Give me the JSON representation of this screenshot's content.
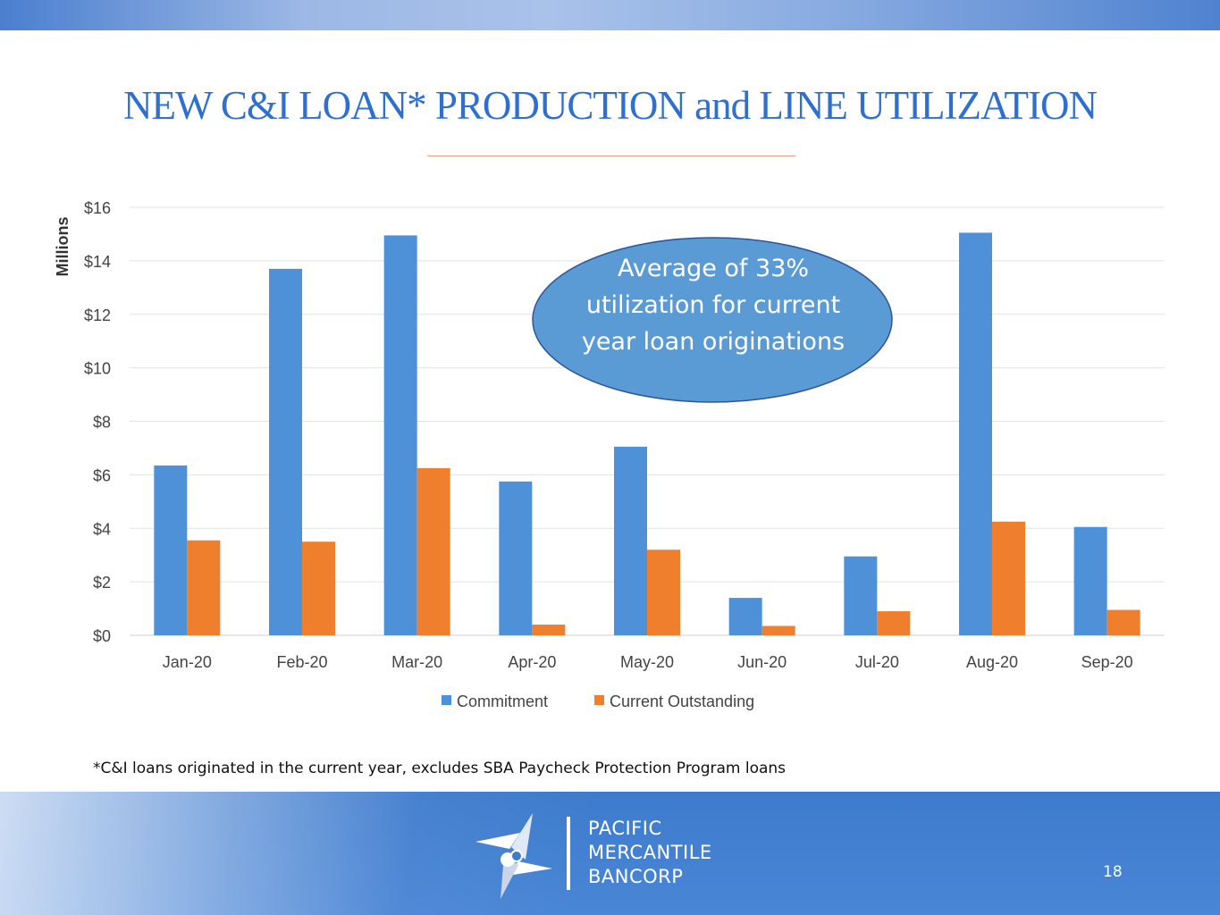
{
  "slide": {
    "title": "NEW C&I LOAN* PRODUCTION and LINE UTILIZATION",
    "footnote": "*C&I loans originated in the current year, excludes SBA Paycheck Protection Program loans",
    "page_number": "18",
    "logo": {
      "lines": [
        "PACIFIC",
        "MERCANTILE",
        "BANCORP"
      ]
    },
    "colors": {
      "title": "#2e6fd0",
      "commitment": "#4f91d9",
      "outstanding": "#f07f2d",
      "callout": "#5b9bd5",
      "band": "#4a86d6"
    }
  },
  "chart_data": {
    "type": "bar",
    "ylabel": "Millions",
    "xlabel": "",
    "ylim": [
      0,
      16
    ],
    "y_ticks": [
      0,
      2,
      4,
      6,
      8,
      10,
      12,
      14,
      16
    ],
    "y_tick_labels": [
      "$0",
      "$2",
      "$4",
      "$6",
      "$8",
      "$10",
      "$12",
      "$14",
      "$16"
    ],
    "grid": true,
    "legend_position": "bottom",
    "categories": [
      "Jan-20",
      "Feb-20",
      "Mar-20",
      "Apr-20",
      "May-20",
      "Jun-20",
      "Jul-20",
      "Aug-20",
      "Sep-20"
    ],
    "series": [
      {
        "name": "Commitment",
        "values": [
          6.35,
          13.7,
          14.95,
          5.75,
          7.05,
          1.4,
          2.95,
          15.05,
          4.05
        ]
      },
      {
        "name": "Current Outstanding",
        "values": [
          3.55,
          3.5,
          6.25,
          0.4,
          3.2,
          0.35,
          0.9,
          4.25,
          0.95
        ]
      }
    ],
    "annotation": "Average of 33% utilization for current year loan originations"
  }
}
